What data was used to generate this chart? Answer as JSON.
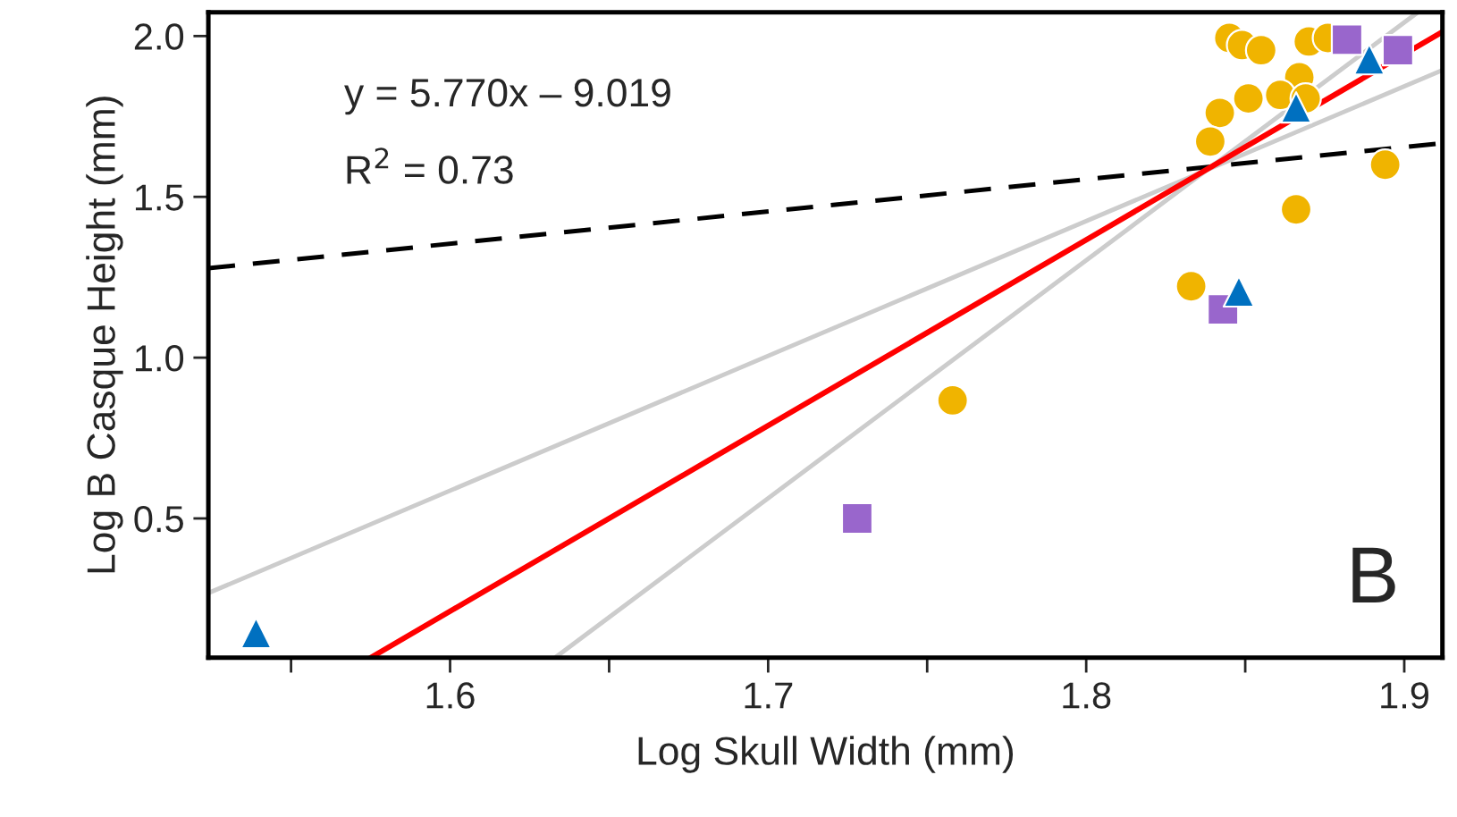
{
  "chart_data": {
    "type": "scatter",
    "xlabel": "Log Skull Width (mm)",
    "ylabel": "Log B Casque Height (mm)",
    "xlim": [
      1.524,
      1.912
    ],
    "ylim": [
      0.067,
      2.074
    ],
    "xticks": [
      {
        "value": 1.55,
        "label": null
      },
      1.6,
      {
        "value": 1.65,
        "label": null
      },
      1.7,
      {
        "value": 1.75,
        "label": null
      },
      1.8,
      {
        "value": 1.85,
        "label": null
      },
      1.9
    ],
    "yticks": [
      0.5,
      {
        "value": 1,
        "label": "1.0"
      },
      1.5,
      {
        "value": 2,
        "label": "2.0"
      }
    ],
    "grid": false,
    "legend": false,
    "annotations": [
      "y = 5.770x – 9.019",
      "R$^{2}$ = 0.73",
      "B"
    ],
    "series": [
      {
        "type": "line",
        "color": "#000000",
        "line_style": "dashed",
        "x": [
          1.524,
          1.912
        ],
        "values": [
          1.278,
          1.667
        ]
      },
      {
        "type": "line",
        "color": "#cccccc",
        "line_style": "solid",
        "x": [
          1.524,
          1.912
        ],
        "values": [
          0.268,
          1.894
        ]
      },
      {
        "type": "line",
        "color": "#cccccc",
        "line_style": "solid",
        "x": [
          1.633,
          1.904
        ],
        "values": [
          0.067,
          2.072
        ]
      },
      {
        "type": "line",
        "color": "#ff0000",
        "line_style": "solid",
        "x": [
          1.575,
          1.912
        ],
        "values": [
          0.067,
          2.013
        ]
      },
      {
        "color": "#f0b400",
        "marker": "circle",
        "x": [
          1.845,
          1.849,
          1.855,
          1.87,
          1.876,
          1.867,
          1.851,
          1.861,
          1.869,
          1.842,
          1.839,
          1.894,
          1.866,
          1.833,
          1.758
        ],
        "values": [
          1.994,
          1.972,
          1.956,
          1.983,
          1.994,
          1.872,
          1.806,
          1.817,
          1.806,
          1.761,
          1.672,
          1.6,
          1.461,
          1.222,
          0.867
        ]
      },
      {
        "color": "#9966cc",
        "marker": "square",
        "x": [
          1.882,
          1.898,
          1.843,
          1.728
        ],
        "values": [
          1.989,
          1.956,
          1.15,
          0.5
        ]
      },
      {
        "color": "#0070c0",
        "marker": "triangle",
        "x": [
          1.866,
          1.889,
          1.848,
          1.539
        ],
        "values": [
          1.778,
          1.928,
          1.206,
          0.144
        ]
      }
    ]
  }
}
